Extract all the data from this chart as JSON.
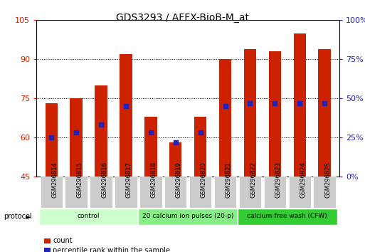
{
  "title": "GDS3293 / AFFX-BioB-M_at",
  "samples": [
    "GSM296814",
    "GSM296815",
    "GSM296816",
    "GSM296817",
    "GSM296818",
    "GSM296819",
    "GSM296820",
    "GSM296821",
    "GSM296822",
    "GSM296823",
    "GSM296824",
    "GSM296825"
  ],
  "bar_values": [
    73,
    75,
    80,
    92,
    68,
    58,
    68,
    90,
    94,
    93,
    100,
    94
  ],
  "percentile_values": [
    60,
    62,
    65,
    72,
    62,
    58,
    62,
    72,
    73,
    73,
    73,
    73
  ],
  "ylim_left": [
    45,
    105
  ],
  "ylim_right": [
    0,
    100
  ],
  "yticks_left": [
    45,
    60,
    75,
    90,
    105
  ],
  "yticks_right": [
    0,
    25,
    50,
    75,
    100
  ],
  "ytick_labels_left": [
    "45",
    "60",
    "75",
    "90",
    "105"
  ],
  "ytick_labels_right": [
    "0%",
    "25%",
    "50%",
    "75%",
    "100%"
  ],
  "bar_color": "#CC2200",
  "dot_color": "#2222BB",
  "protocol_groups": [
    {
      "label": "control",
      "start": 0,
      "end": 3,
      "color": "#CCFFCC"
    },
    {
      "label": "20 calcium ion pulses (20-p)",
      "start": 4,
      "end": 7,
      "color": "#88EE88"
    },
    {
      "label": "calcium-free wash (CFW)",
      "start": 8,
      "end": 11,
      "color": "#33CC33"
    }
  ],
  "bar_bottom": 45,
  "bg_color": "#FFFFFF",
  "tick_label_bg": "#CCCCCC",
  "grid_yticks": [
    60,
    75,
    90
  ],
  "legend_items": [
    {
      "color": "#CC2200",
      "label": "count"
    },
    {
      "color": "#2222BB",
      "label": "percentile rank within the sample"
    }
  ],
  "protocol_label": "protocol"
}
